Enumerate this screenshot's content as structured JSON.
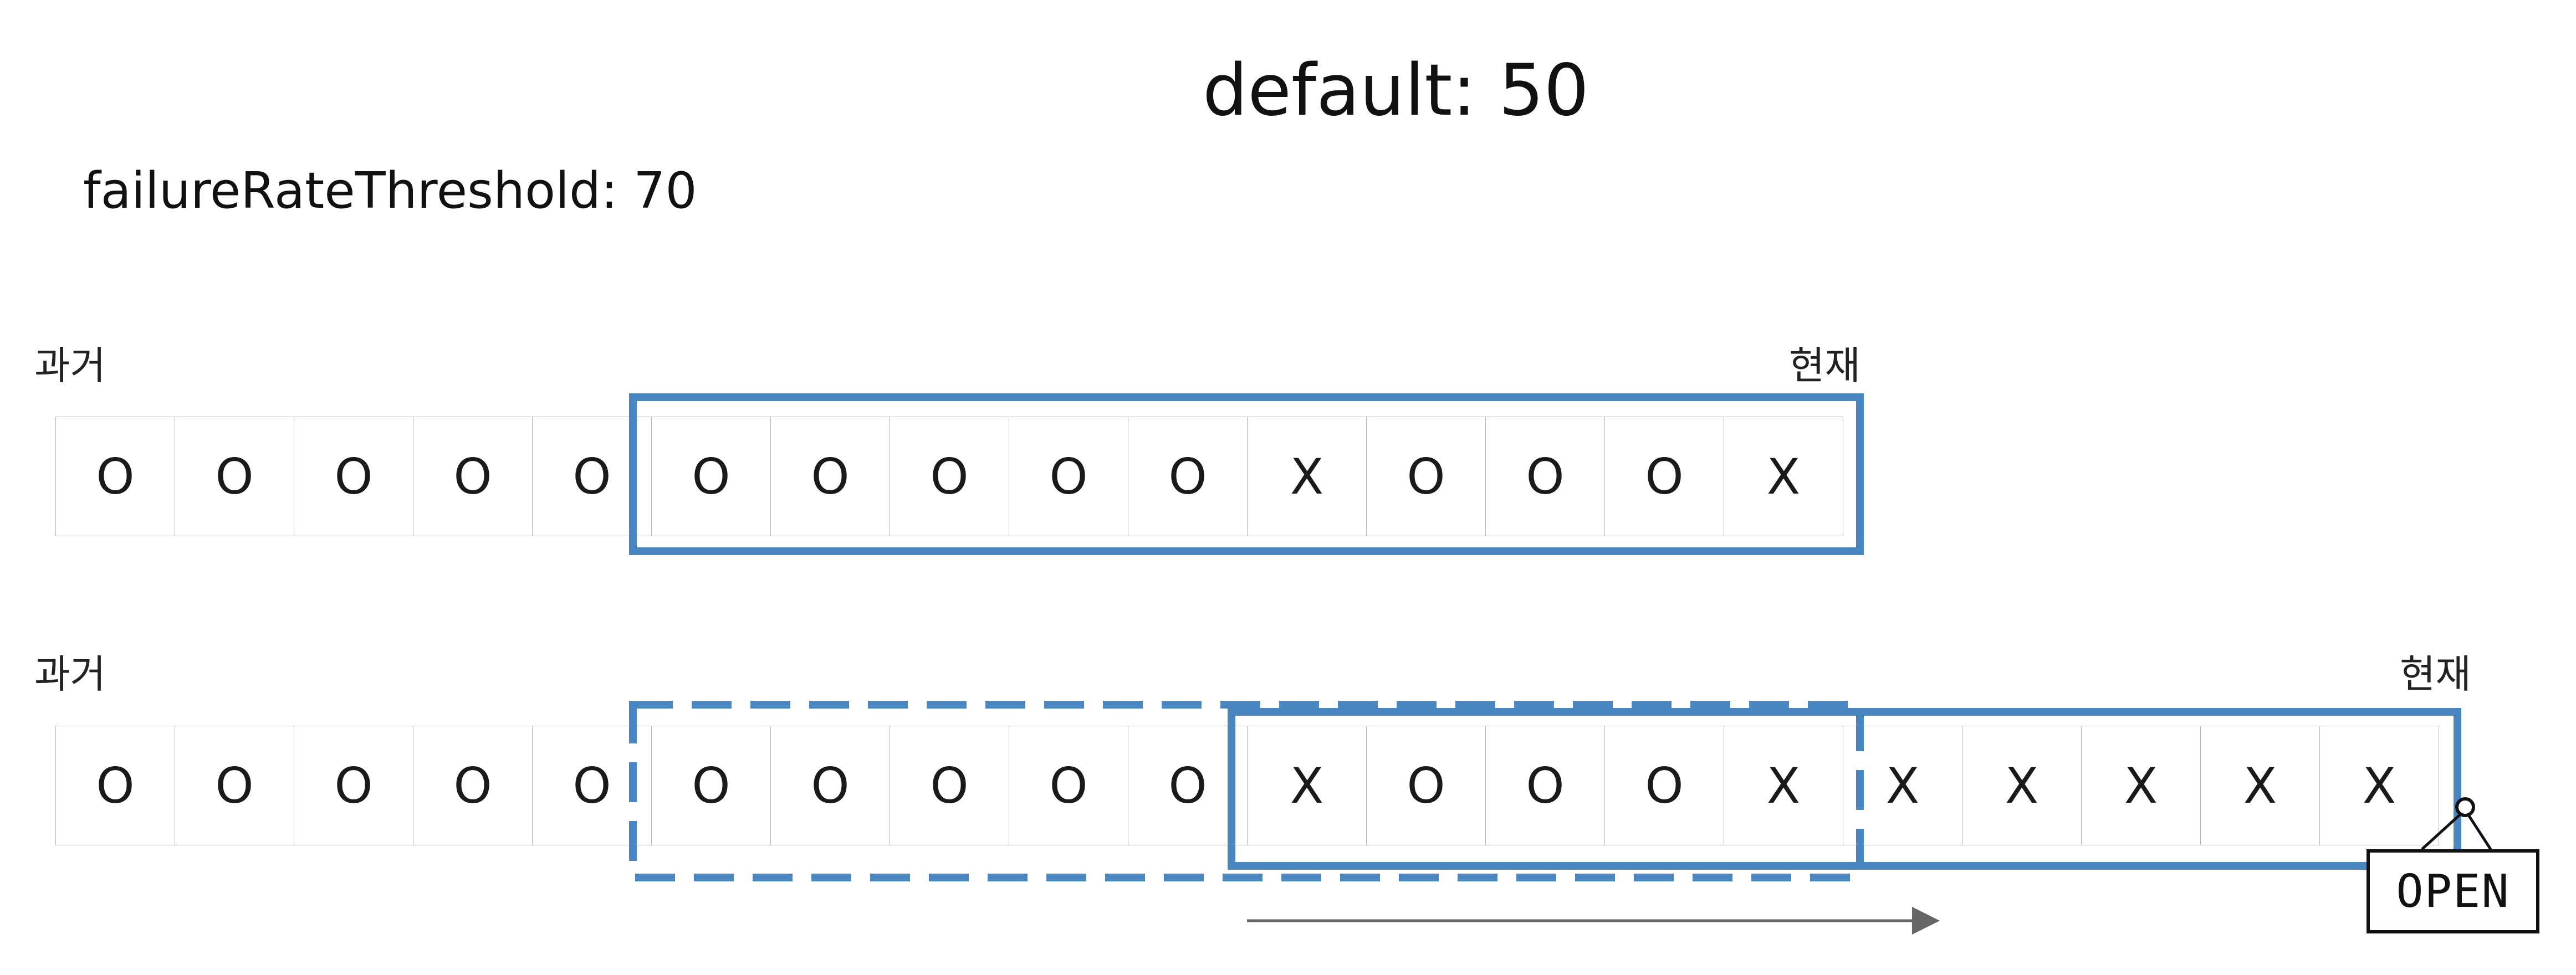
{
  "title": "default: 50",
  "subtitle": "failureRateThreshold: 70",
  "rows": [
    {
      "past_label": "과거",
      "present_label": "현재",
      "cells": [
        "O",
        "O",
        "O",
        "O",
        "O",
        "O",
        "O",
        "O",
        "O",
        "O",
        "X",
        "O",
        "O",
        "O",
        "X"
      ]
    },
    {
      "past_label": "과거",
      "present_label": "현재",
      "cells": [
        "O",
        "O",
        "O",
        "O",
        "O",
        "O",
        "O",
        "O",
        "O",
        "O",
        "X",
        "O",
        "O",
        "O",
        "X",
        "X",
        "X",
        "X",
        "X",
        "X"
      ]
    }
  ],
  "sign": {
    "text": "OPEN"
  },
  "colors": {
    "window": "#4a86c0",
    "arrow": "#666666",
    "cell_border": "#b4b4b4"
  }
}
